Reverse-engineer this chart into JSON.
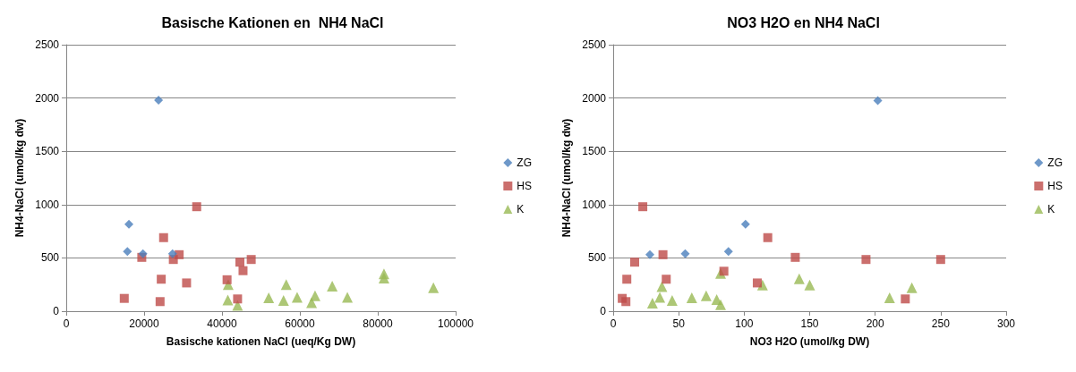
{
  "chart_data": [
    {
      "type": "scatter",
      "title": "Basische Kationen en  NH4 NaCl",
      "xlabel": "Basische kationen NaCl (ueq/Kg DW)",
      "ylabel": "NH4-NaCl (umol/kg dw)",
      "xlim": [
        0,
        100000
      ],
      "xticks": [
        0,
        20000,
        40000,
        60000,
        80000,
        100000
      ],
      "ylim": [
        0,
        2500
      ],
      "yticks": [
        0,
        500,
        1000,
        1500,
        2000,
        2500
      ],
      "grid": "y",
      "legend": "right",
      "series": [
        {
          "name": "ZG",
          "color": "#4a7ebb",
          "marker": "diamond",
          "x": [
            23700,
            16100,
            15700,
            19700,
            27300
          ],
          "values": [
            1980,
            815,
            560,
            540,
            540
          ]
        },
        {
          "name": "HS",
          "color": "#be4b48",
          "marker": "square",
          "x": [
            33500,
            25000,
            19400,
            27500,
            29000,
            44600,
            47500,
            45400,
            24400,
            30900,
            41300,
            14900,
            24100,
            44000
          ],
          "values": [
            980,
            690,
            505,
            485,
            530,
            460,
            485,
            380,
            300,
            265,
            295,
            120,
            90,
            115
          ]
        },
        {
          "name": "K",
          "color": "#98b954",
          "marker": "triangle",
          "x": [
            41600,
            41500,
            44000,
            52000,
            55800,
            56500,
            59300,
            63000,
            63900,
            68300,
            72200,
            81600,
            81600,
            94300
          ],
          "values": [
            250,
            105,
            55,
            125,
            100,
            250,
            130,
            80,
            145,
            235,
            130,
            350,
            310,
            220
          ]
        }
      ]
    },
    {
      "type": "scatter",
      "title": "NO3 H2O en NH4 NaCl",
      "xlabel": "NO3 H2O (umol/kg DW)",
      "ylabel": "NH4-NaCl (umol/kg dw)",
      "xlim": [
        0,
        300
      ],
      "xticks": [
        0,
        50,
        100,
        150,
        200,
        250,
        300
      ],
      "ylim": [
        0,
        2500
      ],
      "yticks": [
        0,
        500,
        1000,
        1500,
        2000,
        2500
      ],
      "grid": "y",
      "legend": "right",
      "series": [
        {
          "name": "ZG",
          "color": "#4a7ebb",
          "marker": "diamond",
          "x": [
            202,
            101,
            88,
            55,
            28
          ],
          "values": [
            1975,
            815,
            560,
            540,
            530
          ]
        },
        {
          "name": "HS",
          "color": "#be4b48",
          "marker": "square",
          "x": [
            22.6,
            118,
            38,
            16.4,
            139,
            193,
            250,
            10.4,
            40.5,
            84.5,
            110,
            6.9,
            9.7,
            223
          ],
          "values": [
            980,
            690,
            530,
            460,
            505,
            485,
            485,
            300,
            300,
            375,
            265,
            120,
            90,
            115
          ]
        },
        {
          "name": "K",
          "color": "#98b954",
          "marker": "triangle",
          "x": [
            30,
            35.6,
            37.2,
            45,
            60,
            71,
            79,
            82,
            82,
            114,
            142,
            150,
            211,
            228
          ],
          "values": [
            75,
            130,
            230,
            100,
            125,
            145,
            110,
            60,
            355,
            245,
            305,
            245,
            125,
            220
          ]
        }
      ]
    }
  ]
}
